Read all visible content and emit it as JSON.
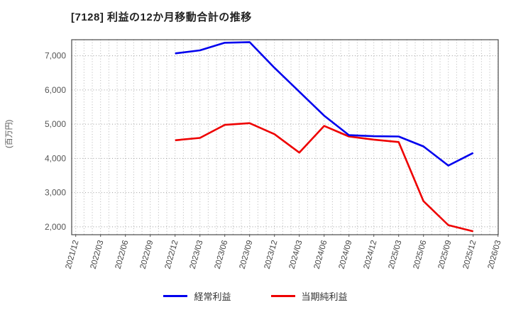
{
  "header": {
    "title": "[7128]  利益の12か月移動合計の推移"
  },
  "chart_data": {
    "type": "line",
    "title": "[7128]  利益の12か月移動合計の推移",
    "xlabel": "",
    "ylabel": "(百万円)",
    "x_tick_labels": [
      "2021/12",
      "2022/03",
      "2022/06",
      "2022/09",
      "2022/12",
      "2023/03",
      "2023/06",
      "2023/09",
      "2023/12",
      "2024/03",
      "2024/06",
      "2024/09",
      "2024/12",
      "2025/03",
      "2025/06",
      "2025/09",
      "2025/12",
      "2026/03"
    ],
    "y_ticks": [
      2000,
      3000,
      4000,
      5000,
      6000,
      7000
    ],
    "y_tick_labels": [
      "2,000",
      "3,000",
      "4,000",
      "5,000",
      "6,000",
      "7,000"
    ],
    "ylim": [
      1770,
      7470
    ],
    "grid": true,
    "legend_position": "bottom-center",
    "x_points": [
      "2022/12",
      "2023/03",
      "2023/06",
      "2023/09",
      "2023/12",
      "2024/03",
      "2024/06",
      "2024/09",
      "2024/12",
      "2025/03",
      "2025/06",
      "2025/09",
      "2025/12"
    ],
    "series": [
      {
        "name": "経常利益",
        "color": "#0000ee",
        "values": [
          7070,
          7160,
          7380,
          7400,
          6650,
          5950,
          5250,
          4680,
          4650,
          4640,
          4350,
          3790,
          4160
        ]
      },
      {
        "name": "当期純利益",
        "color": "#ee0000",
        "values": [
          4530,
          4600,
          4980,
          5030,
          4710,
          4170,
          4950,
          4640,
          4550,
          4480,
          2750,
          2050,
          1870
        ]
      }
    ]
  }
}
